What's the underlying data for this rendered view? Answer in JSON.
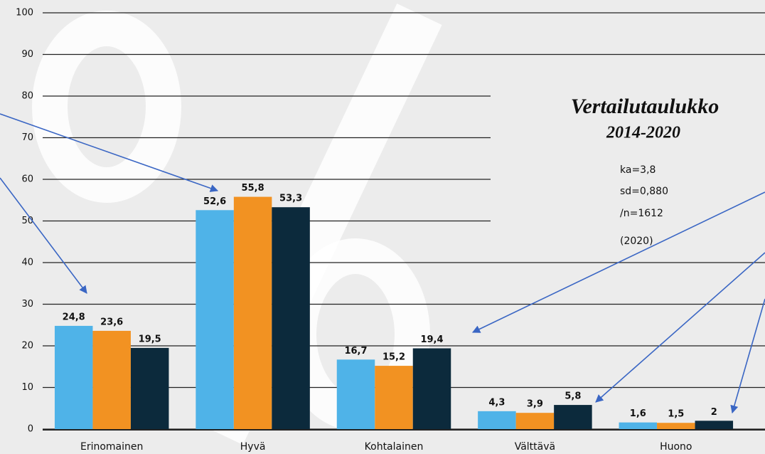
{
  "chart_data": {
    "type": "bar",
    "categories": [
      "Erinomainen",
      "Hyvä",
      "Kohtalainen",
      "Välttävä",
      "Huono"
    ],
    "series": [
      {
        "color": "#4fb3e8",
        "values": [
          24.8,
          52.6,
          16.7,
          4.3,
          1.6
        ],
        "value_labels": [
          "24,8",
          "52,6",
          "16,7",
          "4,3",
          "1,6"
        ]
      },
      {
        "color": "#f29222",
        "values": [
          23.6,
          55.8,
          15.2,
          3.9,
          1.5
        ],
        "value_labels": [
          "23,6",
          "55,8",
          "15,2",
          "3,9",
          "1,5"
        ]
      },
      {
        "color": "#0c2a3c",
        "values": [
          19.5,
          53.3,
          19.4,
          5.8,
          2
        ],
        "value_labels": [
          "19,5",
          "53,3",
          "19,4",
          "5,8",
          "2"
        ]
      }
    ],
    "ylim": [
      0,
      100
    ],
    "yticks": [
      0,
      10,
      20,
      30,
      40,
      50,
      60,
      70,
      80,
      90,
      100
    ],
    "grid": true,
    "annotations": [
      "Vertailutaulukko",
      "2014-2020",
      "ka=3,8",
      "sd=0,880",
      "/n=1612",
      "(2020)"
    ]
  }
}
